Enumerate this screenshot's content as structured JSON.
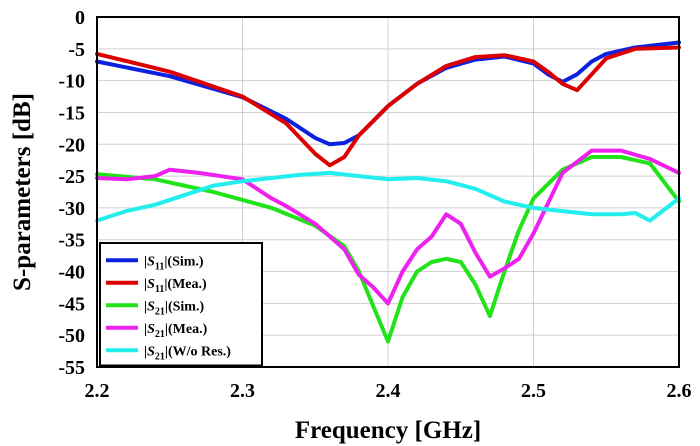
{
  "chart_data": {
    "type": "line",
    "xlabel": "Frequency [GHz]",
    "ylabel": "S-parameters [dB]",
    "xlim": [
      2.2,
      2.6
    ],
    "ylim": [
      -55,
      0
    ],
    "xticks": [
      2.2,
      2.3,
      2.4,
      2.5,
      2.6
    ],
    "xtick_labels": [
      "2.2",
      "2.3",
      "2.4",
      "2.5",
      "2.6"
    ],
    "yticks": [
      0,
      -5,
      -10,
      -15,
      -20,
      -25,
      -30,
      -35,
      -40,
      -45,
      -50,
      -55
    ],
    "ytick_labels": [
      "0",
      "-5",
      "-10",
      "-15",
      "-20",
      "-25",
      "-30",
      "-35",
      "-40",
      "-45",
      "-50",
      "-55"
    ],
    "grid": true,
    "legend_position": "bottom-left",
    "series": [
      {
        "name": "|S11|(Sim.)",
        "legend": {
          "pre": "|",
          "var": "S",
          "sub": "11",
          "post": "|(Sim.)"
        },
        "color": "#0a22e0",
        "x": [
          2.2,
          2.25,
          2.3,
          2.33,
          2.35,
          2.36,
          2.37,
          2.38,
          2.4,
          2.42,
          2.44,
          2.46,
          2.48,
          2.5,
          2.51,
          2.52,
          2.53,
          2.54,
          2.55,
          2.57,
          2.6
        ],
        "y": [
          -7,
          -9.3,
          -12.6,
          -16,
          -19,
          -20,
          -19.8,
          -18.6,
          -14,
          -10.5,
          -8,
          -6.7,
          -6.2,
          -7.3,
          -9,
          -10.2,
          -9,
          -7,
          -5.8,
          -4.8,
          -4
        ]
      },
      {
        "name": "|S11|(Mea.)",
        "legend": {
          "pre": "|",
          "var": "S",
          "sub": "11",
          "post": "|(Mea.)"
        },
        "color": "#dd0000",
        "x": [
          2.2,
          2.25,
          2.3,
          2.33,
          2.35,
          2.36,
          2.37,
          2.38,
          2.4,
          2.42,
          2.44,
          2.46,
          2.48,
          2.5,
          2.51,
          2.52,
          2.53,
          2.54,
          2.55,
          2.57,
          2.6
        ],
        "y": [
          -5.8,
          -8.6,
          -12.5,
          -16.7,
          -21.5,
          -23.3,
          -22,
          -18.6,
          -14,
          -10.5,
          -7.7,
          -6.3,
          -6,
          -7,
          -8.6,
          -10.5,
          -11.5,
          -9,
          -6.5,
          -5,
          -4.8
        ]
      },
      {
        "name": "|S21|(Sim.)",
        "legend": {
          "pre": "|",
          "var": "S",
          "sub": "21",
          "post": "|(Sim.)"
        },
        "color": "#22e21a",
        "x": [
          2.2,
          2.24,
          2.28,
          2.32,
          2.35,
          2.37,
          2.38,
          2.39,
          2.4,
          2.41,
          2.42,
          2.43,
          2.44,
          2.45,
          2.46,
          2.47,
          2.48,
          2.49,
          2.5,
          2.52,
          2.54,
          2.56,
          2.58,
          2.6
        ],
        "y": [
          -24.7,
          -25.5,
          -27.5,
          -30,
          -32.8,
          -36,
          -40,
          -45.5,
          -51,
          -44,
          -40,
          -38.5,
          -38,
          -38.5,
          -42,
          -47,
          -40,
          -33.5,
          -28.5,
          -24,
          -22,
          -22,
          -23,
          -29
        ]
      },
      {
        "name": "|S21|(Mea.)",
        "legend": {
          "pre": "|",
          "var": "S",
          "sub": "21",
          "post": "|(Mea.)"
        },
        "color": "#ee22ee",
        "x": [
          2.2,
          2.22,
          2.24,
          2.25,
          2.27,
          2.3,
          2.32,
          2.33,
          2.35,
          2.37,
          2.38,
          2.39,
          2.4,
          2.41,
          2.42,
          2.43,
          2.44,
          2.45,
          2.46,
          2.47,
          2.48,
          2.49,
          2.5,
          2.52,
          2.54,
          2.56,
          2.58,
          2.6
        ],
        "y": [
          -25.3,
          -25.5,
          -25,
          -24,
          -24.5,
          -25.5,
          -28.5,
          -29.7,
          -32.5,
          -36.5,
          -40.5,
          -42.5,
          -45,
          -40,
          -36.5,
          -34.5,
          -31,
          -32.5,
          -37,
          -40.8,
          -39.5,
          -38,
          -34,
          -24.5,
          -21,
          -21,
          -22.3,
          -24.5
        ]
      },
      {
        "name": "|S21|(W/o Res.)",
        "legend": {
          "pre": "|",
          "var": "S",
          "sub": "21",
          "post": "|(W/o Res.)"
        },
        "color": "#22eeee",
        "x": [
          2.2,
          2.22,
          2.24,
          2.26,
          2.28,
          2.3,
          2.32,
          2.34,
          2.36,
          2.38,
          2.4,
          2.42,
          2.44,
          2.46,
          2.48,
          2.5,
          2.52,
          2.54,
          2.56,
          2.57,
          2.58,
          2.6
        ],
        "y": [
          -32,
          -30.5,
          -29.5,
          -28,
          -26.5,
          -25.8,
          -25.3,
          -24.8,
          -24.5,
          -25,
          -25.5,
          -25.3,
          -25.8,
          -27,
          -29,
          -30,
          -30.5,
          -31,
          -31,
          -30.8,
          -32,
          -28.5
        ]
      }
    ]
  }
}
